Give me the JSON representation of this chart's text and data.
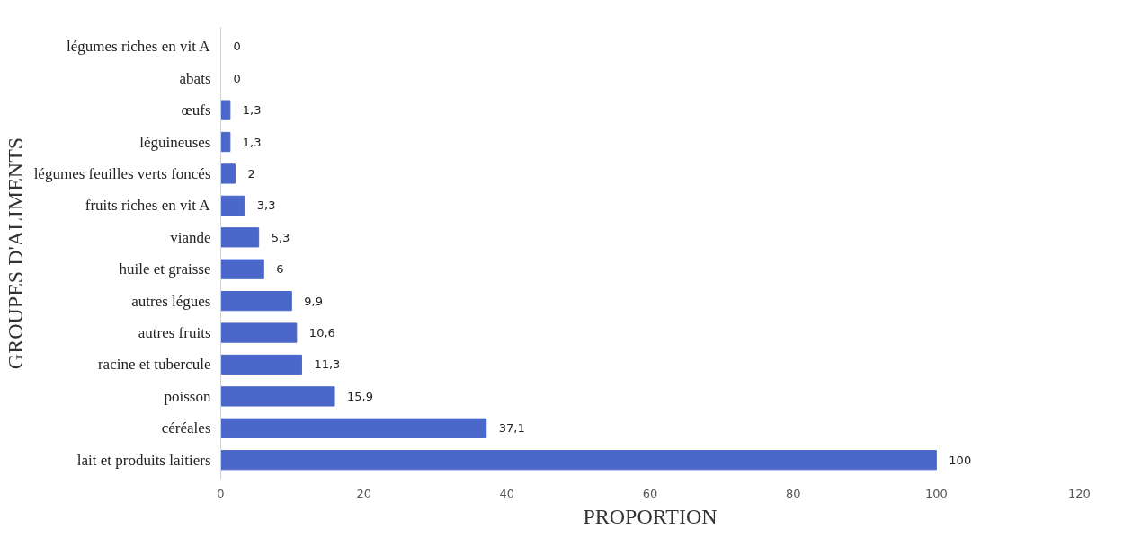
{
  "chart_data": {
    "type": "bar",
    "orientation": "horizontal",
    "xlabel": "PROPORTION",
    "ylabel": "GROUPES D'ALIMENTS",
    "categories": [
      "légumes riches en vit A",
      "abats",
      "œufs",
      "léguineuses",
      "légumes feuilles verts foncés",
      "fruits riches en vit A",
      "viande",
      "huile et graisse",
      "autres légues",
      "autres fruits",
      "racine et tubercule",
      "poisson",
      "céréales",
      "lait et produits laitiers"
    ],
    "values": [
      0,
      0,
      1.3,
      1.3,
      2,
      3.3,
      5.3,
      6,
      9.9,
      10.6,
      11.3,
      15.9,
      37.1,
      100
    ],
    "value_labels": [
      "0",
      "0",
      "1,3",
      "1,3",
      "2",
      "3,3",
      "5,3",
      "6",
      "9,9",
      "10,6",
      "11,3",
      "15,9",
      "37,1",
      "100"
    ],
    "color": "#4a67c9",
    "xlim": [
      0,
      120
    ],
    "xticks": [
      0,
      20,
      40,
      60,
      80,
      100,
      120
    ],
    "grid": false
  }
}
